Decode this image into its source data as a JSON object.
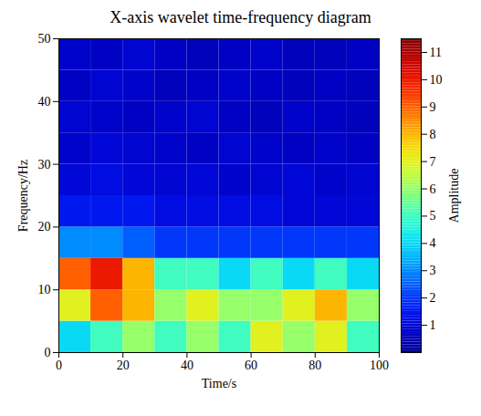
{
  "chart_data": {
    "type": "heatmap",
    "title": "X-axis wavelet time-frequency diagram",
    "x_label": "Time/s",
    "y_label": "Frequency/Hz",
    "colorbar_label": "Amplitude",
    "xlim": [
      0,
      100
    ],
    "xticks": [
      0,
      20,
      40,
      60,
      80,
      100
    ],
    "ylim": [
      0,
      50
    ],
    "yticks": [
      0,
      10,
      20,
      30,
      40,
      50
    ],
    "x_edges": [
      0,
      10,
      20,
      30,
      40,
      50,
      60,
      70,
      80,
      90,
      100
    ],
    "y_edges": [
      0,
      5,
      10,
      15,
      20,
      25,
      30,
      35,
      40,
      45,
      50
    ],
    "cells": [
      [
        4,
        5,
        6,
        5,
        6,
        5,
        7,
        6,
        7,
        5
      ],
      [
        7,
        9,
        8,
        6,
        7,
        6,
        6,
        7,
        8,
        6
      ],
      [
        9,
        10,
        8,
        5,
        5,
        4,
        5,
        4,
        5,
        4
      ],
      [
        3,
        3,
        2.5,
        2,
        2,
        2,
        2,
        2,
        2,
        2
      ],
      [
        1.5,
        1.5,
        1.5,
        1.2,
        1.2,
        1.2,
        1.2,
        1,
        1,
        1
      ],
      [
        1,
        1.2,
        1,
        0.9,
        1,
        0.8,
        0.9,
        1,
        0.8,
        0.9
      ],
      [
        0.8,
        1,
        0.9,
        0.8,
        0.7,
        0.9,
        0.8,
        0.7,
        0.8,
        0.7
      ],
      [
        0.9,
        0.8,
        0.7,
        0.8,
        0.9,
        0.7,
        0.6,
        0.8,
        0.7,
        0.6
      ],
      [
        0.7,
        0.9,
        0.8,
        0.6,
        0.7,
        0.8,
        0.7,
        0.6,
        0.7,
        0.6
      ],
      [
        0.8,
        0.7,
        0.9,
        0.7,
        0.6,
        0.7,
        0.8,
        0.6,
        0.6,
        0.7
      ]
    ],
    "color_range": [
      0,
      11.5
    ],
    "color_ticks": [
      1,
      2,
      3,
      4,
      5,
      6,
      7,
      8,
      9,
      10,
      11
    ]
  }
}
